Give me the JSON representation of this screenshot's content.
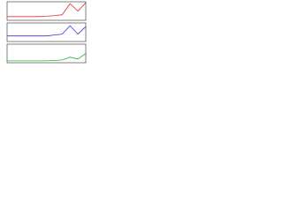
{
  "chart_data": [
    {
      "type": "line",
      "x": [
        0,
        1,
        2,
        3,
        4,
        5,
        6,
        7,
        8,
        9,
        10
      ],
      "xlim": [
        0,
        10
      ],
      "ylim": [
        0,
        1
      ],
      "series": [
        {
          "color": "#e03030",
          "values": [
            0.2,
            0.2,
            0.2,
            0.2,
            0.2,
            0.22,
            0.25,
            0.3,
            0.9,
            0.5,
            0.95
          ]
        }
      ]
    },
    {
      "type": "line",
      "x": [
        0,
        1,
        2,
        3,
        4,
        5,
        6,
        7,
        8,
        9,
        10
      ],
      "xlim": [
        0,
        10
      ],
      "ylim": [
        0,
        1
      ],
      "series": [
        {
          "color": "#3030e0",
          "values": [
            0.3,
            0.3,
            0.3,
            0.3,
            0.3,
            0.3,
            0.35,
            0.4,
            0.85,
            0.4,
            0.8
          ]
        }
      ]
    },
    {
      "type": "line",
      "x": [
        0,
        1,
        2,
        3,
        4,
        5,
        6,
        7,
        8,
        9,
        10
      ],
      "xlim": [
        0,
        10
      ],
      "ylim": [
        0,
        1
      ],
      "series": [
        {
          "color": "#30b030",
          "values": [
            0.1,
            0.1,
            0.1,
            0.1,
            0.1,
            0.1,
            0.12,
            0.15,
            0.3,
            0.2,
            0.5
          ]
        }
      ]
    }
  ]
}
